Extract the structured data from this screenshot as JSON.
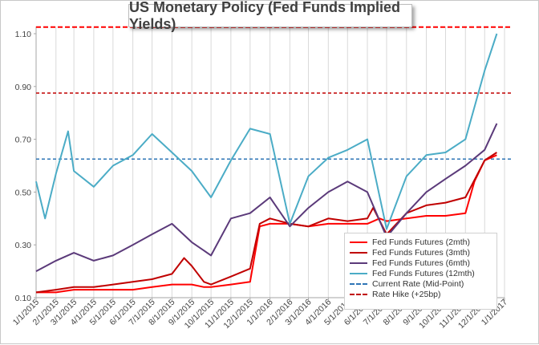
{
  "chart_data": {
    "type": "line",
    "title": "US Monetary Policy (Fed Funds Implied Yields)",
    "x_tick_labels": [
      "1/1/2015",
      "2/1/2015",
      "3/1/2015",
      "4/1/2015",
      "5/1/2015",
      "6/1/2015",
      "7/1/2015",
      "8/1/2015",
      "9/1/2015",
      "10/1/2015",
      "11/1/2015",
      "12/1/2015",
      "1/1/2016",
      "2/1/2016",
      "3/1/2016",
      "4/1/2016",
      "5/1/2016",
      "6/1/2016",
      "7/1/2016",
      "8/1/2016",
      "9/1/2016",
      "10/1/2016",
      "11/1/2016",
      "12/1/2016",
      "1/1/2017"
    ],
    "y_tick_labels": [
      "0.10",
      "0.30",
      "0.50",
      "0.70",
      "0.90",
      "1.10"
    ],
    "ylim": [
      0.1,
      1.1
    ],
    "grid": "vertical",
    "legend_position": "bottom-right",
    "reference_lines": [
      {
        "name": "Current Rate (Mid-Point)",
        "value": 0.625,
        "color": "#2e75b6",
        "dash": "dashed"
      },
      {
        "name": "Rate Hike (+25bp)",
        "value": 0.875,
        "color": "#c00000",
        "dash": "dashed"
      },
      {
        "name": "",
        "value": 1.125,
        "color": "#ff0000",
        "dash": "dashed"
      }
    ],
    "series": [
      {
        "name": "Fed Funds Futures (2mth)",
        "color": "#ff0000",
        "x": [
          "1/1/2015",
          "2/1/2015",
          "3/1/2015",
          "4/1/2015",
          "5/1/2015",
          "6/1/2015",
          "7/1/2015",
          "8/1/2015",
          "8/15/2015",
          "9/1/2015",
          "9/20/2015",
          "10/1/2015",
          "11/1/2015",
          "12/1/2015",
          "12/16/2015",
          "1/1/2016",
          "2/1/2016",
          "3/1/2016",
          "4/1/2016",
          "5/1/2016",
          "6/1/2016",
          "6/20/2016",
          "7/1/2016",
          "8/1/2016",
          "9/1/2016",
          "10/1/2016",
          "11/1/2016",
          "11/15/2016",
          "12/1/2016",
          "12/20/2016"
        ],
        "values": [
          0.12,
          0.12,
          0.13,
          0.13,
          0.13,
          0.13,
          0.14,
          0.15,
          0.15,
          0.15,
          0.14,
          0.14,
          0.15,
          0.16,
          0.37,
          0.38,
          0.38,
          0.37,
          0.38,
          0.38,
          0.38,
          0.4,
          0.39,
          0.4,
          0.41,
          0.41,
          0.42,
          0.54,
          0.62,
          0.64
        ]
      },
      {
        "name": "Fed Funds Futures (3mth)",
        "color": "#c00000",
        "x": [
          "1/1/2015",
          "2/1/2015",
          "3/1/2015",
          "4/1/2015",
          "5/1/2015",
          "6/1/2015",
          "7/1/2015",
          "8/1/2015",
          "8/20/2015",
          "9/1/2015",
          "9/20/2015",
          "10/1/2015",
          "11/1/2015",
          "12/1/2015",
          "12/16/2015",
          "1/1/2016",
          "2/1/2016",
          "3/1/2016",
          "4/1/2016",
          "5/1/2016",
          "6/1/2016",
          "6/10/2016",
          "7/1/2016",
          "8/1/2016",
          "9/1/2016",
          "10/1/2016",
          "11/1/2016",
          "12/1/2016",
          "12/20/2016"
        ],
        "values": [
          0.12,
          0.13,
          0.14,
          0.14,
          0.15,
          0.16,
          0.17,
          0.19,
          0.25,
          0.22,
          0.16,
          0.15,
          0.18,
          0.21,
          0.38,
          0.4,
          0.38,
          0.37,
          0.4,
          0.39,
          0.4,
          0.44,
          0.34,
          0.42,
          0.45,
          0.46,
          0.48,
          0.62,
          0.65
        ]
      },
      {
        "name": "Fed Funds Futures (6mth)",
        "color": "#5b3a7a",
        "x": [
          "1/1/2015",
          "2/1/2015",
          "3/1/2015",
          "4/1/2015",
          "5/1/2015",
          "6/1/2015",
          "7/1/2015",
          "8/1/2015",
          "9/1/2015",
          "10/1/2015",
          "11/1/2015",
          "12/1/2015",
          "1/1/2016",
          "2/1/2016",
          "3/1/2016",
          "4/1/2016",
          "5/1/2016",
          "6/1/2016",
          "7/1/2016",
          "8/1/2016",
          "9/1/2016",
          "10/1/2016",
          "11/1/2016",
          "12/1/2016",
          "12/20/2016"
        ],
        "values": [
          0.2,
          0.24,
          0.27,
          0.24,
          0.26,
          0.3,
          0.34,
          0.38,
          0.31,
          0.26,
          0.4,
          0.42,
          0.48,
          0.37,
          0.44,
          0.5,
          0.54,
          0.5,
          0.33,
          0.42,
          0.5,
          0.55,
          0.6,
          0.66,
          0.76
        ]
      },
      {
        "name": "Fed Funds Futures (12mth)",
        "color": "#4bacc6",
        "x": [
          "1/1/2015",
          "1/15/2015",
          "2/1/2015",
          "2/20/2015",
          "3/1/2015",
          "4/1/2015",
          "5/1/2015",
          "6/1/2015",
          "7/1/2015",
          "8/1/2015",
          "9/1/2015",
          "10/1/2015",
          "11/1/2015",
          "12/1/2015",
          "1/1/2016",
          "2/1/2016",
          "3/1/2016",
          "4/1/2016",
          "5/1/2016",
          "6/1/2016",
          "7/1/2016",
          "8/1/2016",
          "9/1/2016",
          "10/1/2016",
          "11/1/2016",
          "12/1/2016",
          "12/20/2016"
        ],
        "values": [
          0.54,
          0.4,
          0.57,
          0.73,
          0.58,
          0.52,
          0.6,
          0.64,
          0.72,
          0.65,
          0.58,
          0.48,
          0.62,
          0.74,
          0.72,
          0.38,
          0.56,
          0.63,
          0.66,
          0.7,
          0.36,
          0.56,
          0.64,
          0.65,
          0.7,
          0.96,
          1.1
        ]
      }
    ],
    "legend": [
      "Fed Funds Futures (2mth)",
      "Fed Funds Futures (3mth)",
      "Fed Funds Futures (6mth)",
      "Fed Funds Futures (12mth)",
      "Current Rate (Mid-Point)",
      "Rate Hike (+25bp)"
    ]
  },
  "legend_items": [
    {
      "label": "Fed Funds Futures (2mth)",
      "color": "#ff0000",
      "style": "solid"
    },
    {
      "label": "Fed Funds Futures (3mth)",
      "color": "#c00000",
      "style": "solid"
    },
    {
      "label": "Fed Funds Futures (6mth)",
      "color": "#5b3a7a",
      "style": "solid"
    },
    {
      "label": "Fed Funds Futures (12mth)",
      "color": "#4bacc6",
      "style": "solid"
    },
    {
      "label": "Current Rate (Mid-Point)",
      "color": "#2e75b6",
      "style": "dashed"
    },
    {
      "label": "Rate Hike (+25bp)",
      "color": "#c00000",
      "style": "dashed"
    }
  ]
}
